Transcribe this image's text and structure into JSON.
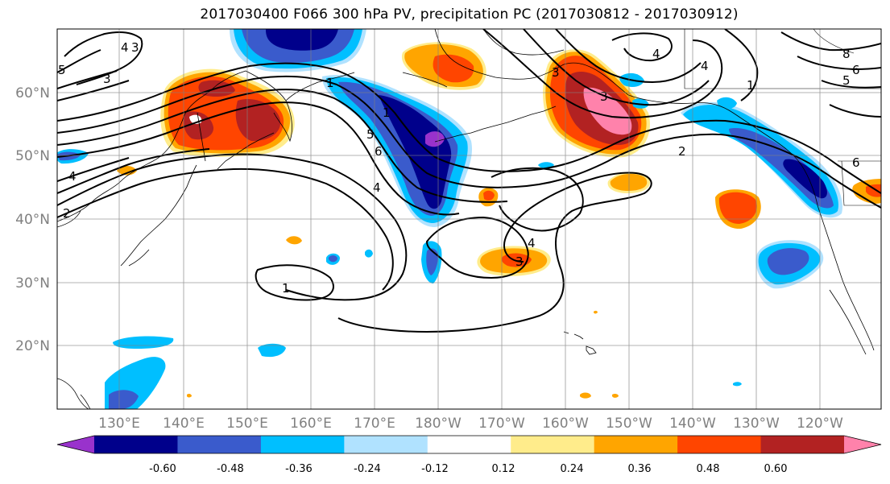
{
  "title": "2017030400 F066 300 hPa PV, precipitation PC (2017030812 - 2017030912)",
  "map": {
    "lat_labels": [
      "60°N",
      "50°N",
      "40°N",
      "30°N",
      "20°N"
    ],
    "lon_labels": [
      "130°E",
      "140°E",
      "150°E",
      "160°E",
      "170°E",
      "180°W",
      "170°W",
      "160°W",
      "150°W",
      "140°W",
      "130°W",
      "120°W"
    ],
    "pv_contour_labels": [
      "5",
      "4",
      "3",
      "3",
      "2",
      "1",
      "1",
      "4",
      "5",
      "6",
      "4",
      "3",
      "4",
      "3",
      "8",
      "6",
      "5",
      "1",
      "2",
      "6",
      "1",
      "4",
      "4",
      "3"
    ]
  },
  "colorbar": {
    "colors": [
      "#9932CC",
      "#00008B",
      "#3A5BCC",
      "#00BFFF",
      "#B0E2FF",
      "#FFFFFF",
      "#FFEC8B",
      "#FFA500",
      "#FF4500",
      "#B22222",
      "#FF82AB"
    ],
    "tick_labels": [
      "-0.60",
      "-0.48",
      "-0.36",
      "-0.24",
      "-0.12",
      "0.12",
      "0.24",
      "0.36",
      "0.48",
      "0.60"
    ]
  }
}
